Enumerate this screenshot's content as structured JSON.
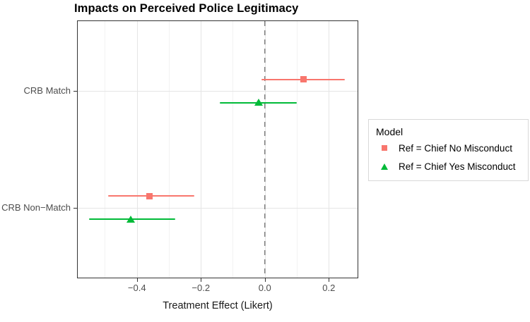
{
  "title": "Impacts on Perceived Police Legitimacy",
  "axes": {
    "x_label": "Treatment Effect (Likert)",
    "x_ticks": [
      {
        "value": -0.4,
        "label": "−0.4"
      },
      {
        "value": -0.2,
        "label": "−0.2"
      },
      {
        "value": 0.0,
        "label": "0.0"
      },
      {
        "value": 0.2,
        "label": "0.2"
      }
    ],
    "y_categories": [
      "CRB Match",
      "CRB Non−Match"
    ]
  },
  "legend": {
    "title": "Model",
    "items": [
      {
        "label": "Ref = Chief No Misconduct",
        "marker": "square",
        "color": "#F8766D"
      },
      {
        "label": "Ref = Chief Yes Misconduct",
        "marker": "triangle",
        "color": "#00BA38"
      }
    ]
  },
  "colors": {
    "series_red": "#F8766D",
    "series_green": "#00BA38",
    "reference_line": "#7F7F7F",
    "grid_major": "#E5E5E5",
    "grid_minor": "#F2F2F2",
    "panel_border": "#333333",
    "tick_label": "#4D4D4D"
  },
  "chart_data": {
    "type": "scatter",
    "subtype": "coefficient-plot-horizontal-error-bars",
    "title": "Impacts on Perceived Police Legitimacy",
    "xlabel": "Treatment Effect (Likert)",
    "ylabel": "",
    "xlim": [
      -0.585,
      0.29
    ],
    "x_major_ticks": [
      -0.4,
      -0.2,
      0,
      0.2
    ],
    "x_minor_gridlines": [
      -0.5,
      -0.3,
      -0.1,
      0.1
    ],
    "categories": [
      "CRB Match",
      "CRB Non-Match"
    ],
    "reference_line": {
      "x": 0,
      "style": "dashed",
      "color": "#7F7F7F"
    },
    "grid": true,
    "legend_position": "right",
    "series": [
      {
        "name": "Ref = Chief No Misconduct",
        "marker": "square",
        "color": "#F8766D",
        "points": [
          {
            "category": "CRB Match",
            "estimate": 0.12,
            "ci_low": -0.01,
            "ci_high": 0.25
          },
          {
            "category": "CRB Non-Match",
            "estimate": -0.36,
            "ci_low": -0.49,
            "ci_high": -0.22
          }
        ]
      },
      {
        "name": "Ref = Chief Yes Misconduct",
        "marker": "triangle",
        "color": "#00BA38",
        "points": [
          {
            "category": "CRB Match",
            "estimate": -0.02,
            "ci_low": -0.14,
            "ci_high": 0.1
          },
          {
            "category": "CRB Non-Match",
            "estimate": -0.42,
            "ci_low": -0.55,
            "ci_high": -0.28
          }
        ]
      }
    ]
  }
}
